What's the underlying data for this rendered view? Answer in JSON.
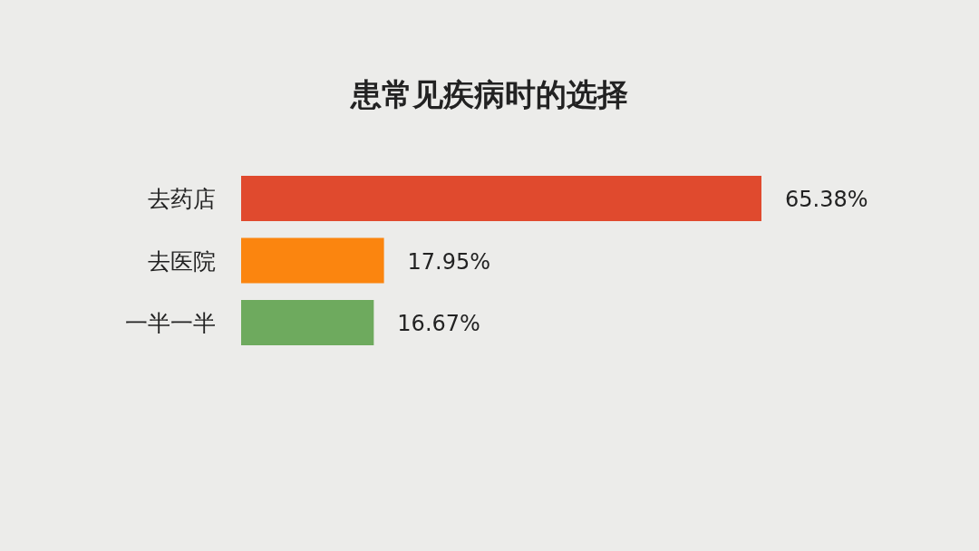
{
  "chart_data": {
    "type": "bar",
    "orientation": "horizontal",
    "title": "患常见疾病时的选择",
    "categories": [
      "去药店",
      "去医院",
      "一半一半"
    ],
    "values": [
      65.38,
      17.95,
      16.67
    ],
    "colors": [
      "#e04a2e",
      "#fb850f",
      "#6eaa5e"
    ],
    "value_labels": [
      "65.38%",
      "17.95%",
      "16.67%"
    ]
  }
}
